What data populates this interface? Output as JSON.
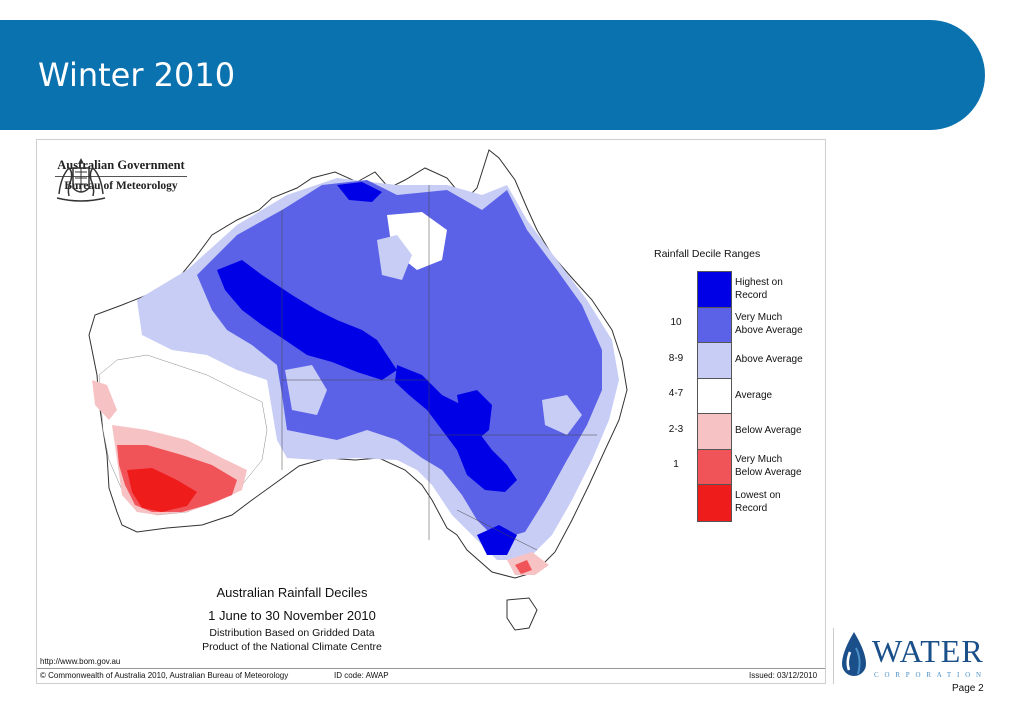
{
  "slide": {
    "title": "Winter 2010",
    "page_label": "Page 2"
  },
  "agency": {
    "name": "Australian Government",
    "bureau": "Bureau of Meteorology",
    "url": "http://www.bom.gov.au"
  },
  "map": {
    "title": "Australian Rainfall Deciles",
    "period": "1 June to 30 November 2010",
    "subtitle1": "Distribution Based on Gridded Data",
    "subtitle2": "Product of the National Climate Centre",
    "copyright": "© Commonwealth of Australia 2010, Australian Bureau of Meteorology",
    "id_code": "ID code: AWAP",
    "issued": "Issued: 03/12/2010"
  },
  "legend": {
    "title": "Rainfall Decile Ranges",
    "items": [
      {
        "line1": "Highest on",
        "line2": "Record",
        "range": "",
        "color": "#0000e6"
      },
      {
        "line1": "Very Much",
        "line2": "Above Average",
        "range": "10",
        "color": "#5b62e8"
      },
      {
        "line1": "Above Average",
        "line2": "",
        "range": "8-9",
        "color": "#c8cdf5"
      },
      {
        "line1": "Average",
        "line2": "",
        "range": "4-7",
        "color": "#ffffff"
      },
      {
        "line1": "Below Average",
        "line2": "",
        "range": "2-3",
        "color": "#f7c2c4"
      },
      {
        "line1": "Very Much",
        "line2": "Below Average",
        "range": "1",
        "color": "#f05358"
      },
      {
        "line1": "Lowest on",
        "line2": "Record",
        "range": "",
        "color": "#ef1c1c"
      }
    ]
  },
  "brand": {
    "word": "WATER",
    "sub": "CORPORATION"
  },
  "colors": {
    "banner": "#0b72b0",
    "brand_blue": "#1a4f8a"
  }
}
